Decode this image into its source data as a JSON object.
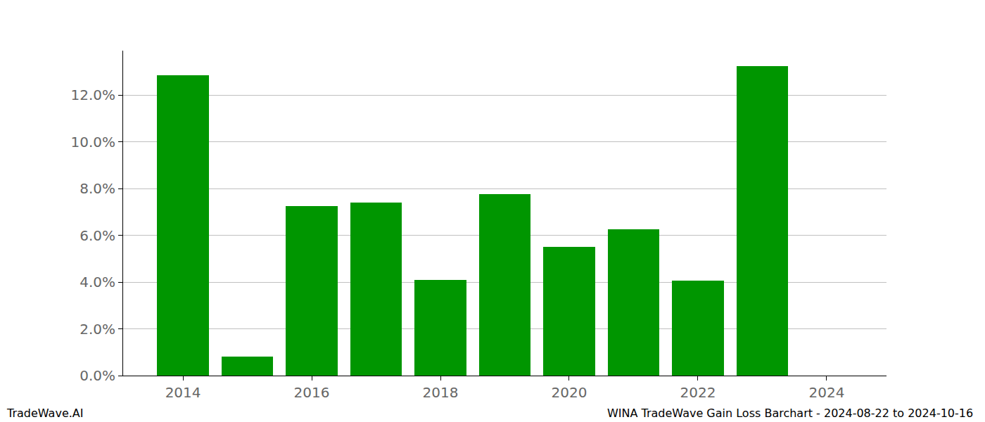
{
  "chart_data": {
    "type": "bar",
    "x": [
      2014,
      2015,
      2016,
      2017,
      2018,
      2019,
      2020,
      2021,
      2022,
      2023
    ],
    "values": [
      12.85,
      0.8,
      7.25,
      7.4,
      4.1,
      7.75,
      5.5,
      6.25,
      4.05,
      13.25
    ],
    "color": "#009600",
    "xlim": [
      2013.07,
      2024.93
    ],
    "xticks": [
      2014,
      2016,
      2018,
      2020,
      2022,
      2024
    ],
    "ylim": [
      0,
      13.9
    ],
    "yticks": [
      {
        "value": 0,
        "label": "0.0%"
      },
      {
        "value": 2,
        "label": "2.0%"
      },
      {
        "value": 4,
        "label": "4.0%"
      },
      {
        "value": 6,
        "label": "6.0%"
      },
      {
        "value": 8,
        "label": "8.0%"
      },
      {
        "value": 10,
        "label": "10.0%"
      },
      {
        "value": 12,
        "label": "12.0%"
      }
    ],
    "grid": true,
    "annotations": [
      "TradeWave.AI",
      "WINA TradeWave Gain Loss Barchart - 2024-08-22 to 2024-10-16"
    ]
  }
}
